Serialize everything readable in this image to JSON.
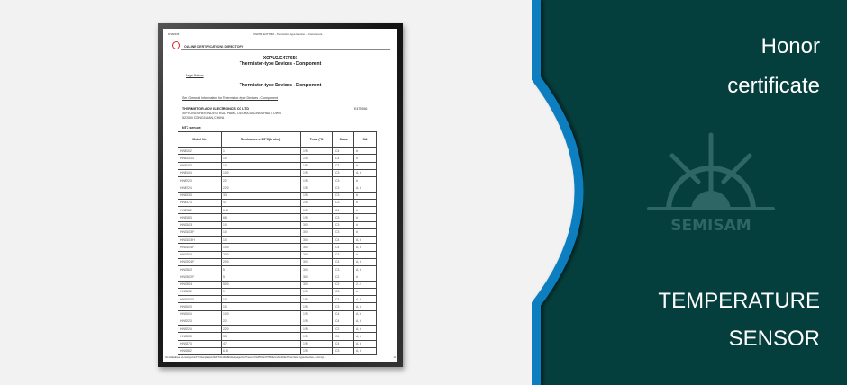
{
  "document": {
    "header_date": "2018/2/16",
    "header_title": "XGPU2.E477656 - Thermistor-type Devices - Component",
    "directory": "ONLINE CERTIFICATIONS DIRECTORY",
    "code": "XGPU2.E477656",
    "title": "Thermistor-type Devices - Component",
    "page_bottom": "Page Bottom",
    "section_title": "Thermistor-type Devices - Component",
    "general_info_link": "See General Information for Thermistor-type Devices - Component",
    "company": "THERMISTOR-MOV ELECTRONICS CO LTD",
    "address1": "XINYONGSHEN INDUSTRIAL PARK, DASHA DALINGSHAN TOWN",
    "address2": "523000 DONGGUAN, CHINA",
    "file_no": "E477656",
    "ntc_label": "NTC sensor:",
    "footer_url": "http://database.ul.com/cgi-bin/XYV/template/LISEXT/1FRAME/showpage.html?name=XGPU2.E477656&ccnshorttitle=Thermistor-type+Devices+-+Compo...",
    "footer_page": "1/2",
    "columns": [
      "Model No.",
      "Resistance at 25°C (k ohm)",
      "Tmax (°C)",
      "Class",
      "CA"
    ],
    "rows": [
      [
        "HNE102",
        "1",
        "125",
        "C4",
        "#"
      ],
      [
        "HNE1033",
        "10",
        "125",
        "C4",
        "#"
      ],
      [
        "HNE103",
        "10",
        "125",
        "C3",
        "#"
      ],
      [
        "HNE104",
        "100",
        "125",
        "C3",
        "A, #"
      ],
      [
        "HNE223",
        "22",
        "125",
        "C3",
        "#"
      ],
      [
        "HNE224",
        "220",
        "125",
        "C3",
        "A, #"
      ],
      [
        "HNE333",
        "33",
        "125",
        "C3",
        "#"
      ],
      [
        "HNE473",
        "47",
        "125",
        "C3",
        "#"
      ],
      [
        "HNE682",
        "6.8",
        "125",
        "C4",
        "#"
      ],
      [
        "HNE683",
        "68",
        "125",
        "C3",
        "#"
      ],
      [
        "HNG103",
        "10",
        "300",
        "C3",
        "#"
      ],
      [
        "HNG103F",
        "10",
        "300",
        "C3",
        "#"
      ],
      [
        "HNG103H",
        "10",
        "300",
        "C4",
        "A, #"
      ],
      [
        "HNG104F",
        "100",
        "300",
        "C4",
        "A, #"
      ],
      [
        "HNG204",
        "200",
        "300",
        "C3",
        "#"
      ],
      [
        "HNG204F",
        "200",
        "300",
        "C4",
        "A, #"
      ],
      [
        "HNG502",
        "5",
        "300",
        "C3",
        "A, #"
      ],
      [
        "HNG502F",
        "5",
        "300",
        "C2",
        "#"
      ],
      [
        "HNG504",
        "500",
        "300",
        "C2",
        "2, #"
      ],
      [
        "HNS102",
        "1",
        "125",
        "C3",
        "#"
      ],
      [
        "HNS1033",
        "10",
        "125",
        "C3",
        "A, #"
      ],
      [
        "HNS103",
        "10",
        "125",
        "C3",
        "A, #"
      ],
      [
        "HNS104",
        "100",
        "125",
        "C4",
        "A, #"
      ],
      [
        "HNS223",
        "22",
        "125",
        "C4",
        "A, #"
      ],
      [
        "HNS224",
        "220",
        "125",
        "C2",
        "A, #"
      ],
      [
        "HNS333",
        "33",
        "125",
        "C4",
        "A, #"
      ],
      [
        "HNS473",
        "47",
        "125",
        "C4",
        "A, #"
      ],
      [
        "HNS682",
        "6.8",
        "125",
        "C3",
        "A, #"
      ]
    ]
  },
  "side": {
    "line1": "Honor",
    "line2": "certificate",
    "logo_text": "SEMISAM",
    "line3": "TEMPERATURE",
    "line4": "SENSOR"
  },
  "colors": {
    "panel": "#053f3d",
    "accent": "#0a7fc0",
    "logo": "#2d6664",
    "background": "#f2f2f2"
  }
}
